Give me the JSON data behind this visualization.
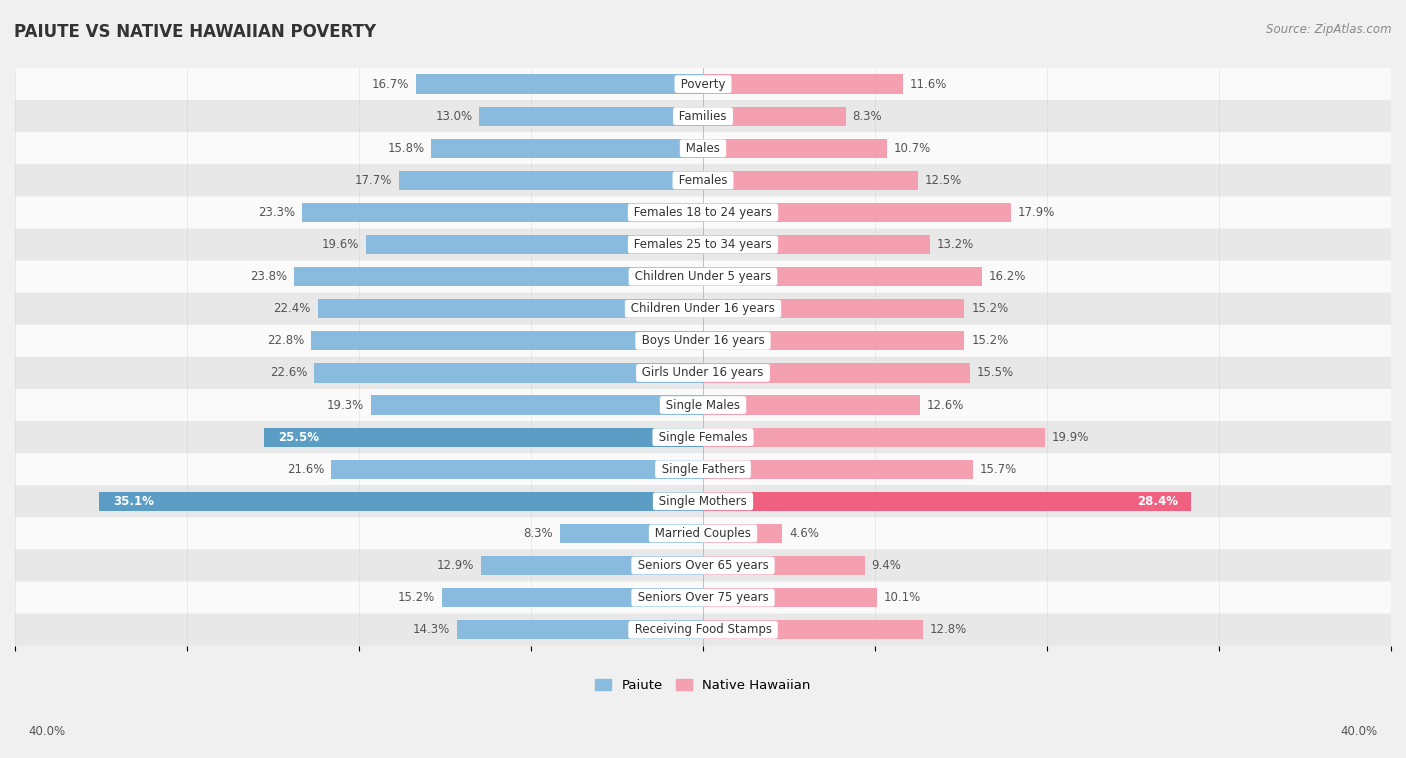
{
  "title": "PAIUTE VS NATIVE HAWAIIAN POVERTY",
  "source": "Source: ZipAtlas.com",
  "categories": [
    "Poverty",
    "Families",
    "Males",
    "Females",
    "Females 18 to 24 years",
    "Females 25 to 34 years",
    "Children Under 5 years",
    "Children Under 16 years",
    "Boys Under 16 years",
    "Girls Under 16 years",
    "Single Males",
    "Single Females",
    "Single Fathers",
    "Single Mothers",
    "Married Couples",
    "Seniors Over 65 years",
    "Seniors Over 75 years",
    "Receiving Food Stamps"
  ],
  "paiute_values": [
    16.7,
    13.0,
    15.8,
    17.7,
    23.3,
    19.6,
    23.8,
    22.4,
    22.8,
    22.6,
    19.3,
    25.5,
    21.6,
    35.1,
    8.3,
    12.9,
    15.2,
    14.3
  ],
  "hawaiian_values": [
    11.6,
    8.3,
    10.7,
    12.5,
    17.9,
    13.2,
    16.2,
    15.2,
    15.2,
    15.5,
    12.6,
    19.9,
    15.7,
    28.4,
    4.6,
    9.4,
    10.1,
    12.8
  ],
  "paiute_color": "#89bbde",
  "hawaiian_color": "#f4a0b0",
  "highlight_paiute_color": "#5b9dc4",
  "highlight_hawaiian_color": "#f06080",
  "highlight_paiute": [
    11,
    13
  ],
  "highlight_hawaiian": [
    13
  ],
  "axis_max": 40.0,
  "background_color": "#f0f0f0",
  "bar_bg_color": "#fafafa",
  "row_alt_color": "#e8e8e8",
  "label_fontsize": 8.5,
  "title_fontsize": 12,
  "source_fontsize": 8.5,
  "tick_fontsize": 8.5
}
